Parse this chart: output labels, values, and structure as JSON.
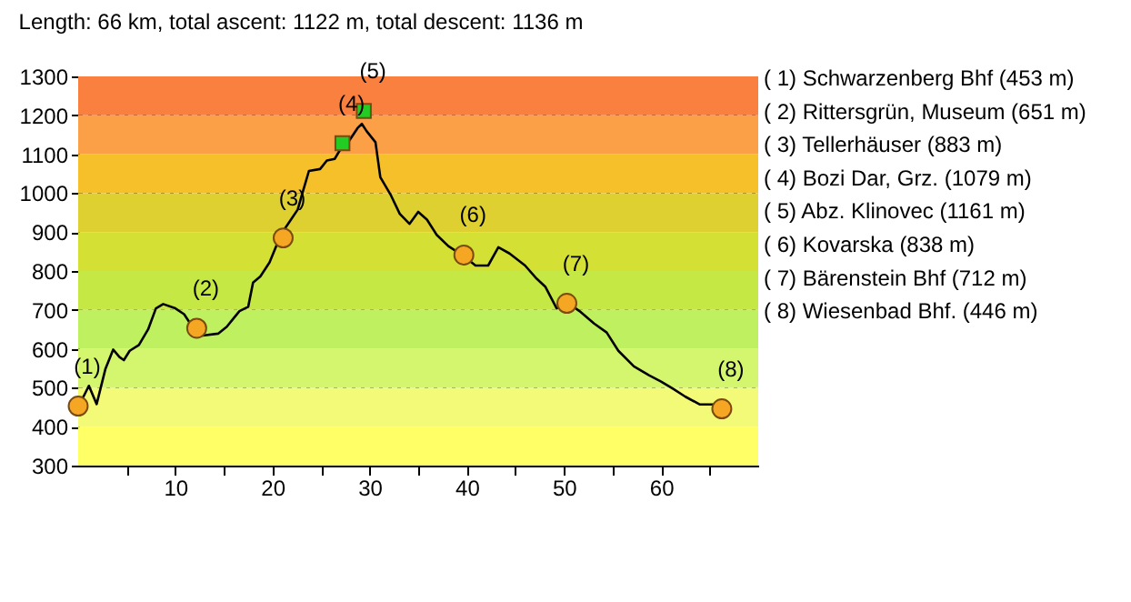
{
  "chart_data": {
    "type": "line",
    "title": "Length: 66 km, total ascent: 1122 m, total descent: 1136 m",
    "xlim": [
      0,
      70
    ],
    "xticks": [
      {
        "value": 5,
        "label": null
      },
      10,
      {
        "value": 15,
        "label": null
      },
      20,
      {
        "value": 25,
        "label": null
      },
      30,
      {
        "value": 35,
        "label": null
      },
      40,
      {
        "value": 45,
        "label": null
      },
      50,
      {
        "value": 55,
        "label": null
      },
      60,
      {
        "value": 65,
        "label": null
      }
    ],
    "ylim": [
      300,
      1300
    ],
    "yticks": [
      300,
      400,
      500,
      600,
      700,
      800,
      900,
      1000,
      1100,
      1200,
      1300
    ],
    "grid": "y",
    "series": [
      {
        "color": "#000000",
        "marker": "none",
        "x": [
          0,
          0.6,
          1.1,
          1.9,
          2.8,
          3.6,
          4.25,
          4.7,
          5.3,
          6.25,
          7.2,
          8,
          8.75,
          10,
          10.9,
          11.75,
          12.2,
          12.8,
          14.4,
          15.3,
          16.6,
          17.5,
          18,
          18.75,
          19.7,
          20.6,
          21.25,
          21.9,
          22.6,
          23.1,
          23.75,
          24.9,
          25.6,
          26.4,
          26.9,
          27.8,
          28.75,
          29.2,
          29.7,
          30.6,
          31.1,
          32.2,
          33.1,
          34.1,
          35,
          35.9,
          36.9,
          38.1,
          39.7,
          40.9,
          42.2,
          43.25,
          44.4,
          46,
          47.2,
          48.1,
          49.25,
          50.3,
          51.6,
          53.1,
          54.4,
          55.6,
          57.2,
          58.75,
          60,
          61.25,
          62.5,
          64,
          65.3,
          66.25
        ],
        "values": [
          453,
          480,
          505,
          458,
          548,
          598,
          579,
          571,
          595,
          610,
          650,
          704,
          715,
          704,
          689,
          657,
          645,
          634,
          639,
          657,
          697,
          708,
          770,
          786,
          822,
          877,
          908,
          932,
          958,
          1002,
          1057,
          1062,
          1084,
          1088,
          1109,
          1131,
          1167,
          1178,
          1159,
          1131,
          1041,
          994,
          947,
          921,
          952,
          932,
          893,
          864,
          838,
          814,
          814,
          861,
          845,
          814,
          780,
          759,
          704,
          720,
          697,
          665,
          642,
          595,
          555,
          532,
          516,
          497,
          477,
          457,
          457,
          446
        ]
      },
      {
        "type": "scatter",
        "color": "#f5a623",
        "marker": "circle",
        "x": [
          0,
          12.2,
          21.1,
          39.7,
          50.3,
          66.25
        ],
        "values": [
          453,
          653,
          885,
          841,
          717,
          446
        ]
      },
      {
        "type": "scatter",
        "color": "#22cc22",
        "marker": "square",
        "x": [
          27.2,
          29.4
        ],
        "values": [
          1128,
          1211
        ]
      }
    ],
    "bands": [
      {
        "axis": "y",
        "from": 300,
        "to": 400,
        "color": "#ffff66"
      },
      {
        "axis": "y",
        "from": 400,
        "to": 500,
        "color": "#f2fa78"
      },
      {
        "axis": "y",
        "from": 500,
        "to": 600,
        "color": "#d4f56e"
      },
      {
        "axis": "y",
        "from": 600,
        "to": 700,
        "color": "#bff060"
      },
      {
        "axis": "y",
        "from": 700,
        "to": 800,
        "color": "#c6e845"
      },
      {
        "axis": "y",
        "from": 800,
        "to": 900,
        "color": "#d5e035"
      },
      {
        "axis": "y",
        "from": 900,
        "to": 1000,
        "color": "#ddd030"
      },
      {
        "axis": "y",
        "from": 1000,
        "to": 1100,
        "color": "#f5c02a"
      },
      {
        "axis": "y",
        "from": 1100,
        "to": 1200,
        "color": "#fca048"
      },
      {
        "axis": "y",
        "from": 1200,
        "to": 1300,
        "color": "#fa8040"
      }
    ],
    "annotations": [
      {
        "text": "(1)",
        "x": 0,
        "y": 453
      },
      {
        "text": "(2)",
        "x": 12.2,
        "y": 653
      },
      {
        "text": "(3)",
        "x": 21.1,
        "y": 885
      },
      {
        "text": "(4)",
        "x": 27.2,
        "y": 1128
      },
      {
        "text": "(5)",
        "x": 29.4,
        "y": 1211
      },
      {
        "text": "(6)",
        "x": 39.7,
        "y": 841
      },
      {
        "text": "(7)",
        "x": 50.3,
        "y": 717
      },
      {
        "text": "(8)",
        "x": 66.25,
        "y": 446
      },
      "( 1) Schwarzenberg Bhf (453 m)",
      "( 2) Rittersgrün, Museum (651 m)",
      "( 3) Tellerhäuser (883 m)",
      "( 4) Bozi Dar, Grz. (1079 m)",
      "( 5) Abz. Klinovec (1161 m)",
      "( 6) Kovarska (838 m)",
      "( 7) Bärenstein Bhf (712 m)",
      "( 8) Wiesenbad Bhf. (446 m)"
    ]
  }
}
